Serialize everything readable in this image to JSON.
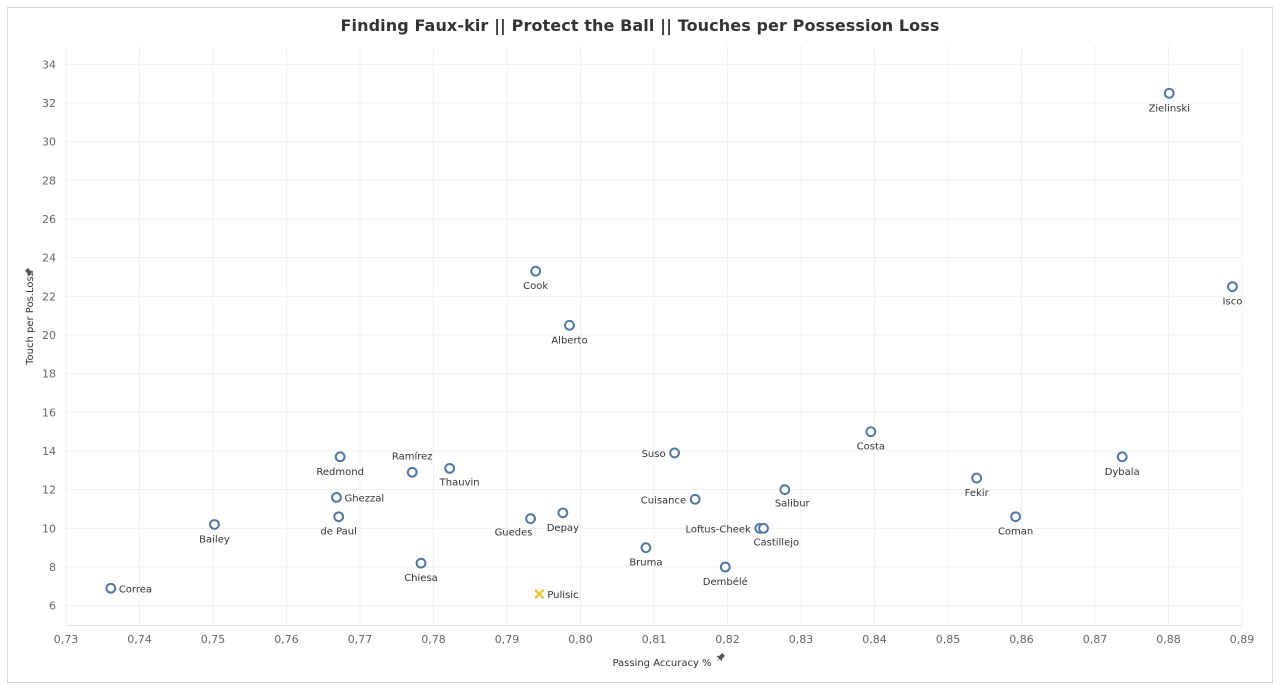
{
  "title": "Finding Faux-kir  ||  Protect the Ball  ||  Touches per Possession Loss",
  "chart_data": {
    "type": "scatter",
    "title": "Finding Faux-kir  ||  Protect the Ball  ||  Touches per Possession Loss",
    "xlabel": "Passing Accuracy %",
    "ylabel": "Touch per Pos.Loss",
    "xlim": [
      0.73,
      0.89
    ],
    "ylim": [
      5,
      35
    ],
    "xticks": [
      "0,73",
      "0,74",
      "0,75",
      "0,76",
      "0,77",
      "0,78",
      "0,79",
      "0,80",
      "0,81",
      "0,82",
      "0,83",
      "0,84",
      "0,85",
      "0,86",
      "0,87",
      "0,88",
      "0,89"
    ],
    "yticks": [
      "6",
      "8",
      "10",
      "12",
      "14",
      "16",
      "18",
      "20",
      "22",
      "24",
      "26",
      "28",
      "30",
      "32",
      "34"
    ],
    "grid": true,
    "colors": {
      "default": "#4e79a7",
      "highlight": "#f1c232"
    },
    "points": [
      {
        "name": "Zielinski",
        "x": 0.8801,
        "y": 32.5,
        "pos": "below"
      },
      {
        "name": "Isco",
        "x": 0.8887,
        "y": 22.5,
        "pos": "below"
      },
      {
        "name": "Cook",
        "x": 0.7939,
        "y": 23.3,
        "pos": "below"
      },
      {
        "name": "Alberto",
        "x": 0.7985,
        "y": 20.5,
        "pos": "below"
      },
      {
        "name": "Costa",
        "x": 0.8395,
        "y": 15.0,
        "pos": "below"
      },
      {
        "name": "Dybala",
        "x": 0.8737,
        "y": 13.7,
        "pos": "below"
      },
      {
        "name": "Redmond",
        "x": 0.7673,
        "y": 13.7,
        "pos": "below"
      },
      {
        "name": "Ramírez",
        "x": 0.7771,
        "y": 12.9,
        "pos": "above"
      },
      {
        "name": "Thauvin",
        "x": 0.7822,
        "y": 13.1,
        "pos": "below-right"
      },
      {
        "name": "Suso",
        "x": 0.8128,
        "y": 13.9,
        "pos": "left"
      },
      {
        "name": "Fekir",
        "x": 0.8539,
        "y": 12.6,
        "pos": "below"
      },
      {
        "name": "Salibur",
        "x": 0.8278,
        "y": 12.0,
        "pos": "below-right"
      },
      {
        "name": "Ghezzal",
        "x": 0.7668,
        "y": 11.6,
        "pos": "right"
      },
      {
        "name": "Cuisance",
        "x": 0.8156,
        "y": 11.5,
        "pos": "left"
      },
      {
        "name": "Depay",
        "x": 0.7976,
        "y": 10.8,
        "pos": "below"
      },
      {
        "name": "de Paul",
        "x": 0.7671,
        "y": 10.6,
        "pos": "below"
      },
      {
        "name": "Coman",
        "x": 0.8592,
        "y": 10.6,
        "pos": "below"
      },
      {
        "name": "Guedes",
        "x": 0.7932,
        "y": 10.5,
        "pos": "below-left"
      },
      {
        "name": "Bailey",
        "x": 0.7502,
        "y": 10.2,
        "pos": "below"
      },
      {
        "name": "Loftus-Cheek",
        "x": 0.8244,
        "y": 10.0,
        "pos": "left"
      },
      {
        "name": "Castillejo",
        "x": 0.8249,
        "y": 10.0,
        "pos": "below-right"
      },
      {
        "name": "Bruma",
        "x": 0.8089,
        "y": 9.0,
        "pos": "below"
      },
      {
        "name": "Chiesa",
        "x": 0.7783,
        "y": 8.2,
        "pos": "below"
      },
      {
        "name": "Dembélé",
        "x": 0.8197,
        "y": 8.0,
        "pos": "below"
      },
      {
        "name": "Correa",
        "x": 0.7361,
        "y": 6.9,
        "pos": "right"
      },
      {
        "name": "Pulisic",
        "x": 0.7944,
        "y": 6.6,
        "pos": "right",
        "highlight": true
      }
    ]
  }
}
